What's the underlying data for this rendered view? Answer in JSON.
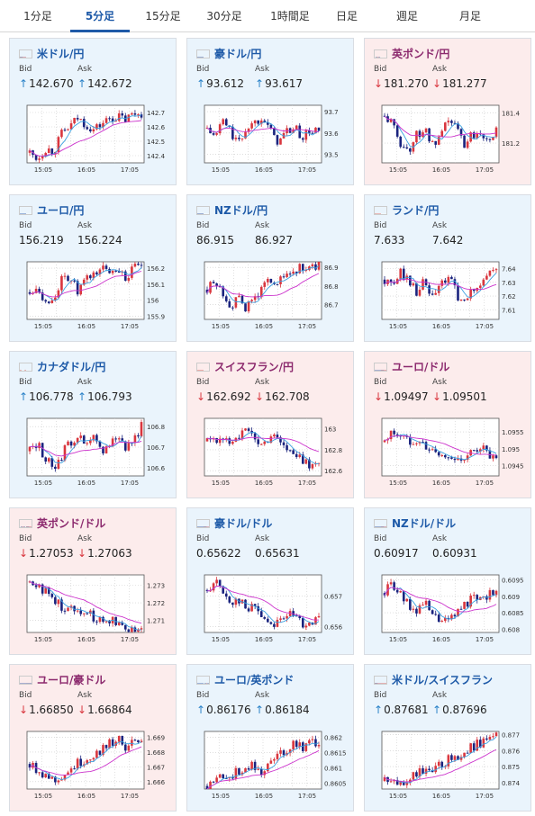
{
  "tabs": [
    {
      "label": "1分足",
      "active": false
    },
    {
      "label": "5分足",
      "active": true
    },
    {
      "label": "15分足",
      "active": false
    },
    {
      "label": "30分足",
      "active": false
    },
    {
      "label": "1時間足",
      "active": false
    },
    {
      "label": "日足",
      "active": false
    },
    {
      "label": "週足",
      "active": false
    },
    {
      "label": "月足",
      "active": false
    }
  ],
  "labels": {
    "bid": "Bid",
    "ask": "Ask"
  },
  "colors": {
    "up_arrow": "#2a82c8",
    "down_arrow": "#d9363e",
    "candle_up": "#d9363e",
    "candle_down": "#1a237e",
    "ma_short": "#3aa0e0",
    "ma_long": "#cc33cc"
  },
  "pairs": [
    {
      "name": "米ドル/円",
      "flags": [
        "us",
        "jp"
      ],
      "direction": "up",
      "bid": "142.670",
      "ask": "142.672",
      "bid_arrow": "up",
      "ask_arrow": "up",
      "chart_data": {
        "type": "candlestick",
        "x_ticks": [
          "15:05",
          "16:05",
          "17:05"
        ],
        "y_ticks": [
          "142.7",
          "142.6",
          "142.5",
          "142.4"
        ],
        "ylim": [
          142.35,
          142.75
        ],
        "trend": [
          142.42,
          142.38,
          142.45,
          142.43,
          142.55,
          142.6,
          142.66,
          142.62,
          142.58,
          142.62,
          142.66,
          142.67,
          142.65,
          142.69,
          142.7
        ]
      }
    },
    {
      "name": "豪ドル/円",
      "flags": [
        "au",
        "jp"
      ],
      "direction": "up",
      "bid": "93.612",
      "ask": "93.617",
      "bid_arrow": "up",
      "ask_arrow": "up",
      "chart_data": {
        "type": "candlestick",
        "x_ticks": [
          "15:05",
          "16:05",
          "17:05"
        ],
        "y_ticks": [
          "93.7",
          "93.6",
          "93.5"
        ],
        "ylim": [
          93.46,
          93.73
        ],
        "trend": [
          93.62,
          93.58,
          93.66,
          93.6,
          93.55,
          93.63,
          93.65,
          93.69,
          93.6,
          93.56,
          93.61,
          93.62,
          93.58,
          93.61,
          93.61
        ]
      }
    },
    {
      "name": "英ポンド/円",
      "flags": [
        "gb",
        "jp"
      ],
      "direction": "down",
      "bid": "181.270",
      "ask": "181.277",
      "bid_arrow": "down",
      "ask_arrow": "down",
      "chart_data": {
        "type": "candlestick",
        "x_ticks": [
          "15:05",
          "16:05",
          "17:05"
        ],
        "y_ticks": [
          "181.4",
          "181.2"
        ],
        "ylim": [
          181.07,
          181.45
        ],
        "trend": [
          181.38,
          181.32,
          181.2,
          181.15,
          181.25,
          181.3,
          181.18,
          181.22,
          181.36,
          181.3,
          181.2,
          181.26,
          181.28,
          181.24,
          181.27
        ]
      }
    },
    {
      "name": "ユーロ/円",
      "flags": [
        "eu",
        "jp"
      ],
      "direction": "up",
      "bid": "156.219",
      "ask": "156.224",
      "bid_arrow": "none",
      "ask_arrow": "none",
      "chart_data": {
        "type": "candlestick",
        "x_ticks": [
          "15:05",
          "16:05",
          "17:05"
        ],
        "y_ticks": [
          "156.2",
          "156.1",
          "156",
          "155.9"
        ],
        "ylim": [
          155.88,
          156.24
        ],
        "trend": [
          156.05,
          156.1,
          155.98,
          156.02,
          156.12,
          156.15,
          156.05,
          156.12,
          156.16,
          156.2,
          156.18,
          156.21,
          156.14,
          156.19,
          156.22
        ]
      }
    },
    {
      "name": "NZドル/円",
      "flags": [
        "nz",
        "jp"
      ],
      "direction": "up",
      "bid": "86.915",
      "ask": "86.927",
      "bid_arrow": "none",
      "ask_arrow": "none",
      "chart_data": {
        "type": "candlestick",
        "x_ticks": [
          "15:05",
          "16:05",
          "17:05"
        ],
        "y_ticks": [
          "86.9",
          "86.8",
          "86.7"
        ],
        "ylim": [
          86.62,
          86.93
        ],
        "trend": [
          86.78,
          86.82,
          86.76,
          86.7,
          86.72,
          86.68,
          86.74,
          86.79,
          86.84,
          86.82,
          86.86,
          86.88,
          86.9,
          86.89,
          86.92
        ]
      }
    },
    {
      "name": "ランド/円",
      "flags": [
        "za",
        "jp"
      ],
      "direction": "up",
      "bid": "7.633",
      "ask": "7.642",
      "bid_arrow": "none",
      "ask_arrow": "none",
      "chart_data": {
        "type": "candlestick",
        "x_ticks": [
          "15:05",
          "16:05",
          "17:05"
        ],
        "y_ticks": [
          "7.64",
          "7.63",
          "7.62",
          "7.61"
        ],
        "ylim": [
          7.603,
          7.645
        ],
        "trend": [
          7.632,
          7.626,
          7.638,
          7.632,
          7.624,
          7.63,
          7.618,
          7.628,
          7.634,
          7.622,
          7.614,
          7.624,
          7.63,
          7.636,
          7.64
        ]
      }
    },
    {
      "name": "カナダドル/円",
      "flags": [
        "ca",
        "jp"
      ],
      "direction": "up",
      "bid": "106.778",
      "ask": "106.793",
      "bid_arrow": "up",
      "ask_arrow": "up",
      "chart_data": {
        "type": "candlestick",
        "x_ticks": [
          "15:05",
          "16:05",
          "17:05"
        ],
        "y_ticks": [
          "106.8",
          "106.7",
          "106.6"
        ],
        "ylim": [
          106.56,
          106.84
        ],
        "trend": [
          106.68,
          106.72,
          106.64,
          106.6,
          106.66,
          106.72,
          106.76,
          106.7,
          106.74,
          106.68,
          106.72,
          106.76,
          106.7,
          106.74,
          106.8
        ]
      }
    },
    {
      "name": "スイスフラン/円",
      "flags": [
        "ch",
        "jp"
      ],
      "direction": "down",
      "bid": "162.692",
      "ask": "162.708",
      "bid_arrow": "down",
      "ask_arrow": "down",
      "chart_data": {
        "type": "candlestick",
        "x_ticks": [
          "15:05",
          "16:05",
          "17:05"
        ],
        "y_ticks": [
          "163",
          "162.8",
          "162.6"
        ],
        "ylim": [
          162.55,
          163.1
        ],
        "trend": [
          162.88,
          162.92,
          162.86,
          162.9,
          162.95,
          162.98,
          162.9,
          162.84,
          162.95,
          162.92,
          162.8,
          162.74,
          162.7,
          162.66,
          162.68
        ]
      }
    },
    {
      "name": "ユーロ/ドル",
      "flags": [
        "eu",
        "us"
      ],
      "direction": "down",
      "bid": "1.09497",
      "ask": "1.09501",
      "bid_arrow": "down",
      "ask_arrow": "down",
      "chart_data": {
        "type": "candlestick",
        "x_ticks": [
          "15:05",
          "16:05",
          "17:05"
        ],
        "y_ticks": [
          "1.0955",
          "1.095",
          "1.0945"
        ],
        "ylim": [
          1.0942,
          1.0959
        ],
        "trend": [
          1.0952,
          1.0955,
          1.0954,
          1.0952,
          1.0953,
          1.0951,
          1.0949,
          1.0948,
          1.0947,
          1.0948,
          1.0946,
          1.0949,
          1.0951,
          1.0948,
          1.0946
        ]
      }
    },
    {
      "name": "英ポンド/ドル",
      "flags": [
        "gb",
        "us"
      ],
      "direction": "down",
      "bid": "1.27053",
      "ask": "1.27063",
      "bid_arrow": "down",
      "ask_arrow": "down",
      "chart_data": {
        "type": "candlestick",
        "x_ticks": [
          "15:05",
          "16:05",
          "17:05"
        ],
        "y_ticks": [
          "1.273",
          "1.272",
          "1.271"
        ],
        "ylim": [
          1.2703,
          1.2736
        ],
        "trend": [
          1.2732,
          1.2731,
          1.2726,
          1.2722,
          1.2718,
          1.2716,
          1.2718,
          1.2714,
          1.2712,
          1.2709,
          1.2711,
          1.2708,
          1.2707,
          1.2705,
          1.2706
        ]
      }
    },
    {
      "name": "豪ドル/ドル",
      "flags": [
        "au",
        "us"
      ],
      "direction": "up",
      "bid": "0.65622",
      "ask": "0.65631",
      "bid_arrow": "none",
      "ask_arrow": "none",
      "chart_data": {
        "type": "candlestick",
        "x_ticks": [
          "15:05",
          "16:05",
          "17:05"
        ],
        "y_ticks": [
          "0.657",
          "0.656"
        ],
        "ylim": [
          0.6558,
          0.6577
        ],
        "trend": [
          0.6572,
          0.6575,
          0.6571,
          0.6568,
          0.6569,
          0.6565,
          0.6567,
          0.6563,
          0.6561,
          0.6562,
          0.6564,
          0.6563,
          0.6561,
          0.6562,
          0.6562
        ]
      }
    },
    {
      "name": "NZドル/ドル",
      "flags": [
        "nz",
        "us"
      ],
      "direction": "up",
      "bid": "0.60917",
      "ask": "0.60931",
      "bid_arrow": "none",
      "ask_arrow": "none",
      "chart_data": {
        "type": "candlestick",
        "x_ticks": [
          "15:05",
          "16:05",
          "17:05"
        ],
        "y_ticks": [
          "0.6095",
          "0.609",
          "0.6085",
          "0.608"
        ],
        "ylim": [
          0.6079,
          0.60965
        ],
        "trend": [
          0.6091,
          0.6094,
          0.609,
          0.6087,
          0.6086,
          0.6088,
          0.6084,
          0.6083,
          0.6082,
          0.6085,
          0.6088,
          0.6089,
          0.6091,
          0.609,
          0.6092
        ]
      }
    },
    {
      "name": "ユーロ/豪ドル",
      "flags": [
        "eu",
        "au"
      ],
      "direction": "down",
      "bid": "1.66850",
      "ask": "1.66864",
      "bid_arrow": "down",
      "ask_arrow": "down",
      "chart_data": {
        "type": "candlestick",
        "x_ticks": [
          "15:05",
          "16:05",
          "17:05"
        ],
        "y_ticks": [
          "1.669",
          "1.668",
          "1.667",
          "1.666"
        ],
        "ylim": [
          1.6655,
          1.6694
        ],
        "trend": [
          1.6672,
          1.6668,
          1.6665,
          1.6661,
          1.6664,
          1.6668,
          1.6672,
          1.6675,
          1.6678,
          1.6682,
          1.6686,
          1.6689,
          1.6684,
          1.6686,
          1.6685
        ]
      }
    },
    {
      "name": "ユーロ/英ポンド",
      "flags": [
        "eu",
        "gb"
      ],
      "direction": "up",
      "bid": "0.86176",
      "ask": "0.86184",
      "bid_arrow": "up",
      "ask_arrow": "up",
      "chart_data": {
        "type": "candlestick",
        "x_ticks": [
          "15:05",
          "16:05",
          "17:05"
        ],
        "y_ticks": [
          "0.862",
          "0.8615",
          "0.861",
          "0.8605"
        ],
        "ylim": [
          0.8603,
          0.8622
        ],
        "trend": [
          0.8604,
          0.8606,
          0.8608,
          0.8607,
          0.8609,
          0.8611,
          0.861,
          0.8609,
          0.8612,
          0.8614,
          0.8616,
          0.8619,
          0.8617,
          0.8619,
          0.8618
        ]
      }
    },
    {
      "name": "米ドル/スイスフラン",
      "flags": [
        "us",
        "ch"
      ],
      "direction": "up",
      "bid": "0.87681",
      "ask": "0.87696",
      "bid_arrow": "up",
      "ask_arrow": "up",
      "chart_data": {
        "type": "candlestick",
        "x_ticks": [
          "15:05",
          "16:05",
          "17:05"
        ],
        "y_ticks": [
          "0.877",
          "0.876",
          "0.875",
          "0.874"
        ],
        "ylim": [
          0.8736,
          0.8772
        ],
        "trend": [
          0.8741,
          0.8739,
          0.874,
          0.8743,
          0.8746,
          0.8748,
          0.8746,
          0.8751,
          0.8754,
          0.8757,
          0.8759,
          0.8762,
          0.8765,
          0.8768,
          0.8769
        ]
      }
    }
  ]
}
